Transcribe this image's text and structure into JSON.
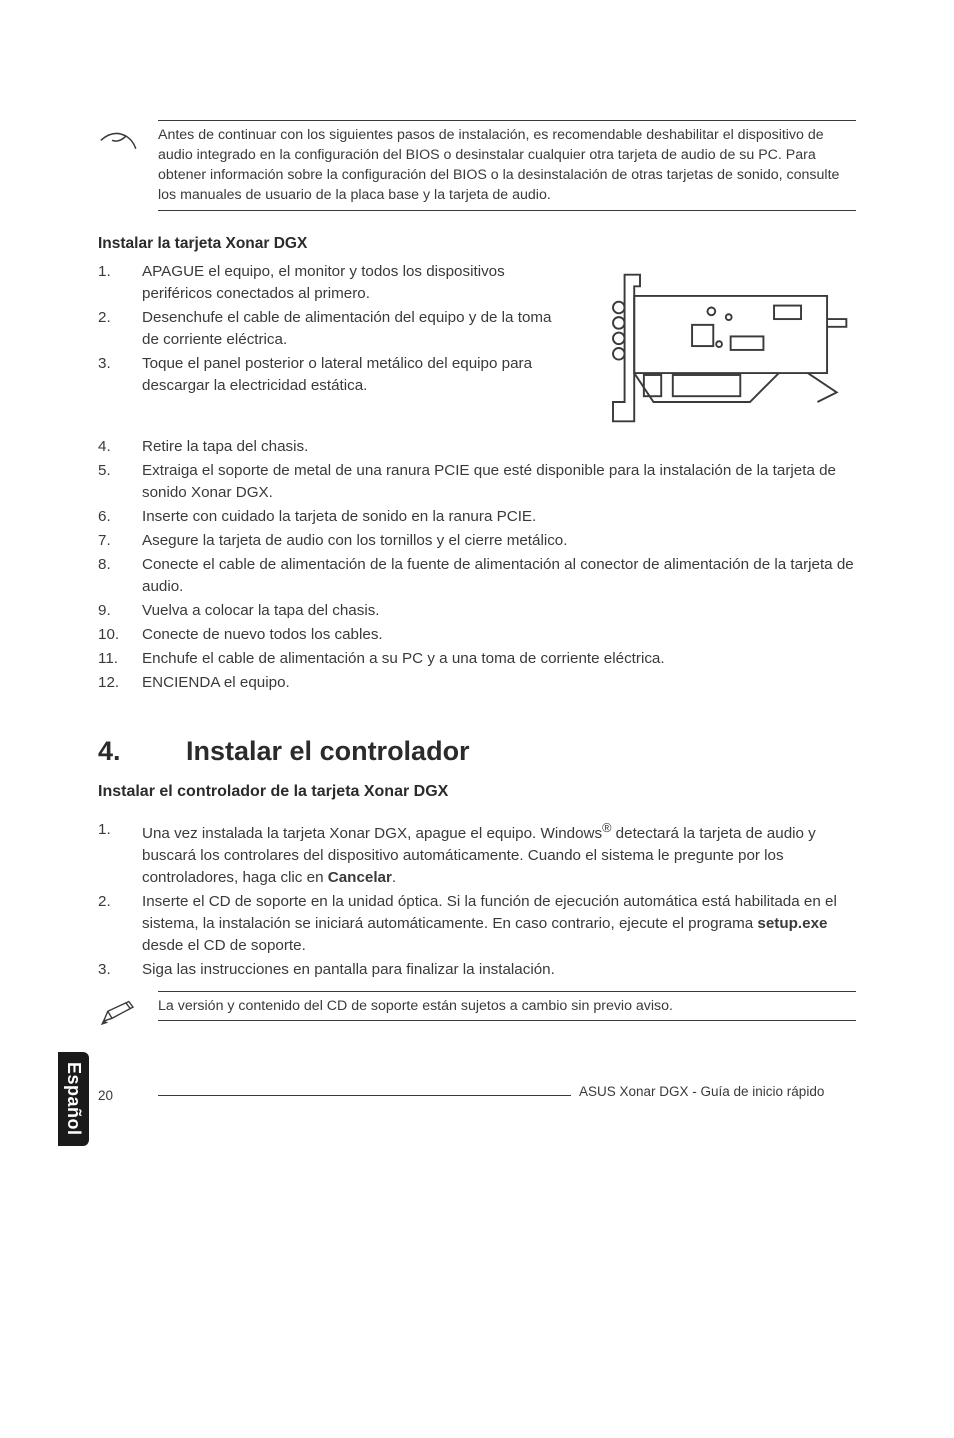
{
  "note1": {
    "text": "Antes de continuar con los siguientes pasos de instalación, es recomendable deshabilitar el dispositivo de audio integrado en la configuración del BIOS o desinstalar cualquier otra tarjeta de audio de su PC. Para obtener información sobre la configuración del BIOS o la desinstalación de otras tarjetas de sonido, consulte los manuales de usuario de la placa base y la tarjeta de audio."
  },
  "install_card": {
    "heading": "Instalar la tarjeta Xonar DGX",
    "items": [
      "APAGUE el equipo, el monitor y todos los dispositivos periféricos conectados al primero.",
      "Desenchufe el cable de alimentación del equipo y de la toma de corriente eléctrica.",
      "Toque el panel posterior o lateral metálico del equipo para descargar la electricidad estática.",
      "Retire la tapa del chasis.",
      "Extraiga el soporte de metal de una ranura PCIE que esté disponible para la instalación de la tarjeta de sonido Xonar DGX.",
      "Inserte con cuidado la tarjeta de sonido en la ranura PCIE.",
      "Asegure la tarjeta de audio con los tornillos y el cierre metálico.",
      "Conecte el cable de alimentación de la fuente de alimentación al conector de alimentación de la tarjeta de audio.",
      "Vuelva a colocar la tapa del chasis.",
      "Conecte de nuevo todos los cables.",
      "Enchufe el cable de alimentación a su PC y a una toma de corriente eléctrica.",
      "ENCIENDA el equipo."
    ]
  },
  "section4": {
    "num": "4.",
    "title": "Instalar el controlador",
    "subhead": "Instalar el controlador de la tarjeta Xonar DGX",
    "items_html": [
      "Una vez instalada la tarjeta Xonar DGX, apague el equipo. Windows<sup>®</sup> detectará la tarjeta de audio y buscará los controlares del dispositivo automáticamente. Cuando el sistema le pregunte por los controladores, haga clic en <b>Cancelar</b>.",
      "Inserte el CD de soporte en la unidad óptica. Si la función de ejecución automática está habilitada en el sistema, la instalación se iniciará automáticamente. En caso contrario, ejecute el programa <b>setup.exe</b> desde el CD de soporte.",
      "Siga las instrucciones en pantalla para finalizar la instalación."
    ]
  },
  "note2": {
    "text": "La versión y contenido del CD de soporte están sujetos a cambio sin previo aviso."
  },
  "sidetab": "Español",
  "footer": {
    "page": "20",
    "text": "ASUS Xonar DGX - Guía de inicio rápido"
  },
  "colors": {
    "text": "#3a3a3a",
    "heading": "#2b2b2b",
    "rule": "#3a3a3a",
    "tab_bg": "#1a1a1a",
    "tab_fg": "#ffffff"
  }
}
